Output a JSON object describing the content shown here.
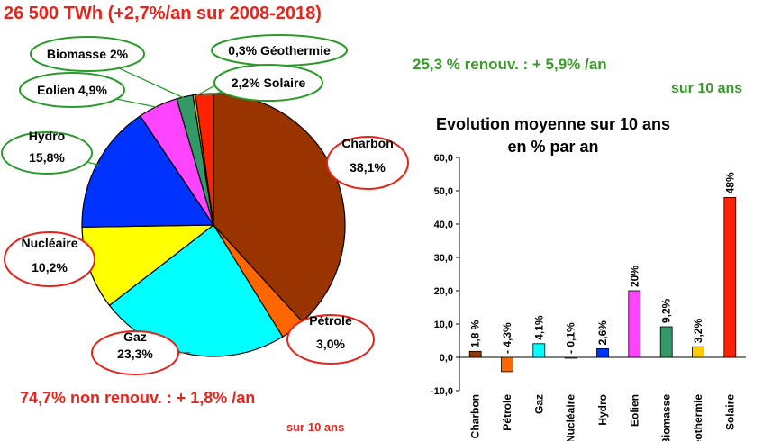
{
  "headlines": {
    "total": "26 500 TWh (+2,7%/an sur 2008-2018)",
    "renewable": "25,3 % renouv. : + 5,9% /an",
    "renewable_sub": "sur 10 ans",
    "nonrenewable": "74,7% non renouv. : + 1,8% /an",
    "nonrenewable_sub": "sur 10 ans"
  },
  "chart_data": [
    {
      "type": "pie",
      "slices": [
        {
          "name": "Charbon",
          "value": 38.1,
          "label": "Charbon 38,1%",
          "color": "#993300",
          "outline": "#e8231b"
        },
        {
          "name": "Pétrole",
          "value": 3.0,
          "label": "Pétrole 3,0%",
          "color": "#ff6600",
          "outline": "#e8231b"
        },
        {
          "name": "Gaz",
          "value": 23.3,
          "label": "Gaz 23,3%",
          "color": "#00ffff",
          "outline": "#e8231b"
        },
        {
          "name": "Nucléaire",
          "value": 10.2,
          "label": "Nucléaire 10,2%",
          "color": "#ffff00",
          "outline": "#e8231b"
        },
        {
          "name": "Hydro",
          "value": 15.8,
          "label": "Hydro 15,8%",
          "color": "#0033ff",
          "outline": "#2a9a2a"
        },
        {
          "name": "Eolien",
          "value": 4.9,
          "label": "Eolien 4,9%",
          "color": "#ff44ff",
          "outline": "#2a9a2a"
        },
        {
          "name": "Biomasse",
          "value": 2.0,
          "label": "Biomasse 2%",
          "color": "#339966",
          "outline": "#2a9a2a"
        },
        {
          "name": "Géothermie",
          "value": 0.3,
          "label": "0,3% Géothermie",
          "color": "#ffcc00",
          "outline": "#2a9a2a"
        },
        {
          "name": "Solaire",
          "value": 2.2,
          "label": "2,2% Solaire",
          "color": "#ff2200",
          "outline": "#2a9a2a"
        }
      ]
    },
    {
      "type": "bar",
      "title": [
        "Evolution moyenne sur 10 ans",
        "en % par an"
      ],
      "categories": [
        "Charbon",
        "Pétrole",
        "Gaz",
        "Nucléaire",
        "Hydro",
        "Eolien",
        "Biomasse",
        "Géothermie",
        "Solaire"
      ],
      "values": [
        1.8,
        -4.3,
        4.1,
        -0.1,
        2.6,
        20,
        9.2,
        3.2,
        48
      ],
      "data_labels": [
        "1,8 %",
        "- 4,3%",
        "4,1%",
        "- 0,1%",
        "2,6%",
        "20%",
        "9,2%",
        "3,2%",
        "48%"
      ],
      "colors": [
        "#993300",
        "#ff6600",
        "#00ffff",
        "#ffff00",
        "#0033ff",
        "#ff44ff",
        "#339966",
        "#ffcc00",
        "#ff2200"
      ],
      "yticks": [
        "60,0",
        "50,0",
        "40,0",
        "30,0",
        "20,0",
        "10,0",
        "0,0",
        "-10,0"
      ],
      "ylim": [
        -10,
        60
      ],
      "grid": false
    }
  ]
}
